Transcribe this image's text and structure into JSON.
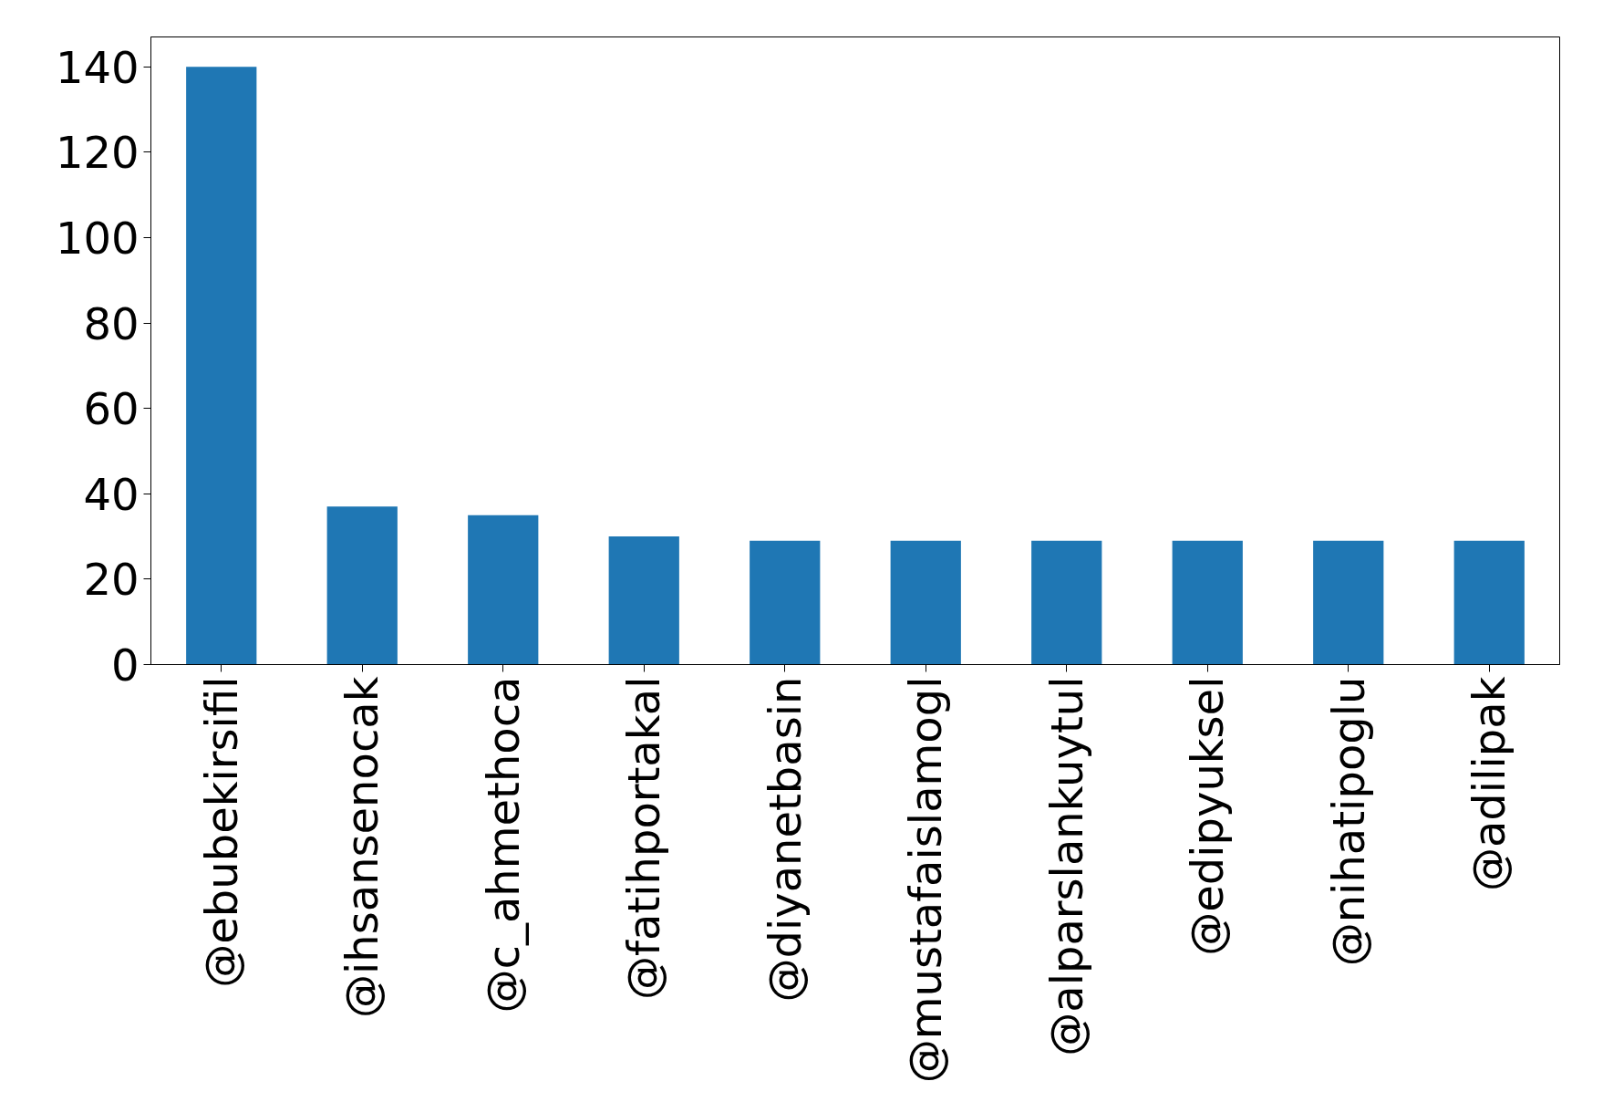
{
  "chart_data": {
    "type": "bar",
    "categories": [
      "@ebubekirsifil",
      "@ihsansenocak",
      "@c_ahmethoca",
      "@fatihportakal",
      "@diyanetbasin",
      "@mustafaislamogl",
      "@alparslankuytul",
      "@edipyuksel",
      "@nihatipoglu",
      "@adilipak"
    ],
    "values": [
      140,
      37,
      35,
      30,
      29,
      29,
      29,
      29,
      29,
      29
    ],
    "color": "#1f77b4",
    "ylim": [
      0,
      147
    ],
    "yticks": [
      0,
      20,
      40,
      60,
      80,
      100,
      120,
      140
    ],
    "grid": false
  }
}
